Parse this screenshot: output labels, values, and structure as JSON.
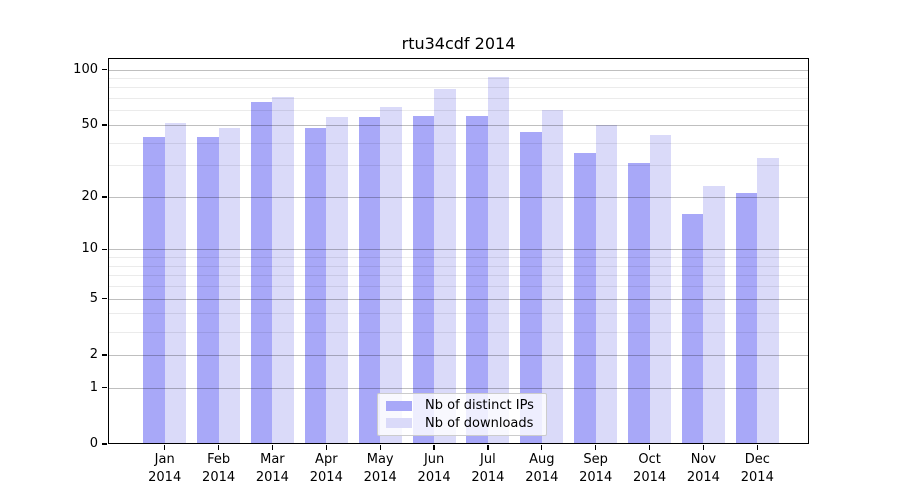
{
  "figure_title": "rtu34cdf 2014",
  "chart_data": {
    "type": "bar",
    "title": "rtu34cdf 2014",
    "categories": [
      "Jan 2014",
      "Feb 2014",
      "Mar 2014",
      "Apr 2014",
      "May 2014",
      "Jun 2014",
      "Jul 2014",
      "Aug 2014",
      "Sep 2014",
      "Oct 2014",
      "Nov 2014",
      "Dec 2014"
    ],
    "x_tick_months": [
      "Jan",
      "Feb",
      "Mar",
      "Apr",
      "May",
      "Jun",
      "Jul",
      "Aug",
      "Sep",
      "Oct",
      "Nov",
      "Dec"
    ],
    "x_tick_year": "2014",
    "series": [
      {
        "name": "Nb of distinct IPs",
        "color": "#a8a8f8",
        "values": [
          43,
          43,
          67,
          48,
          55,
          56,
          56,
          46,
          35,
          31,
          16,
          21
        ]
      },
      {
        "name": "Nb of downloads",
        "color": "#dadaf9",
        "values": [
          51,
          48,
          71,
          55,
          63,
          78,
          91,
          60,
          50,
          44,
          23,
          33
        ]
      }
    ],
    "ylabel": "",
    "xlabel": "",
    "yscale": "log1p",
    "ylim": [
      0,
      115
    ],
    "y_tick_values": [
      100,
      50,
      20,
      10,
      5,
      2,
      1,
      0
    ],
    "y_tick_labels": [
      "100",
      "50",
      "20",
      "10",
      "5",
      "2",
      "1",
      "0"
    ],
    "y_minor_gridlines": [
      3,
      4,
      6,
      7,
      8,
      9,
      30,
      40,
      60,
      70,
      80,
      90
    ],
    "grid": true,
    "legend_position": "lower center",
    "colors": {
      "distinct_ips_bar": "#a8a8f8",
      "downloads_bar": "#dadaf9",
      "axis": "#000000",
      "major_grid": "#c6c6c6",
      "minor_grid": "#ececec",
      "background": "#ffffff"
    }
  }
}
